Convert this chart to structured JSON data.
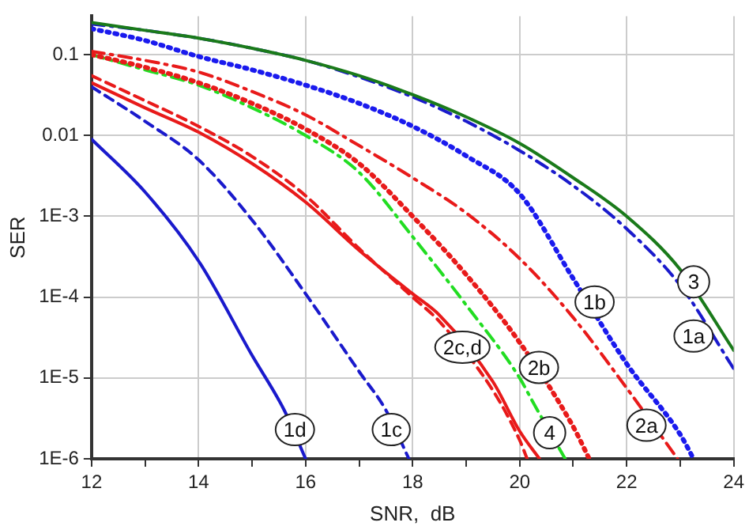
{
  "chart_data": {
    "type": "line",
    "xlabel": "SNR,  dB",
    "ylabel": "SER",
    "log": "y",
    "grid": true,
    "legend": false,
    "marker": "none",
    "xlim": [
      12,
      24
    ],
    "xticks": [
      12,
      {
        "value": 13,
        "label": null
      },
      14,
      {
        "value": 15,
        "label": null
      },
      16,
      {
        "value": 17,
        "label": null
      },
      18,
      {
        "value": 19,
        "label": null
      },
      20,
      {
        "value": 21,
        "label": null
      },
      22,
      {
        "value": 23,
        "label": null
      },
      24
    ],
    "ylim": [
      1e-06,
      0.3
    ],
    "yticks": [
      {
        "value": 1e-06,
        "label": "1E-6"
      },
      {
        "value": 1e-05,
        "label": "1E-5"
      },
      {
        "value": 0.0001,
        "label": "1E-4"
      },
      {
        "value": 0.001,
        "label": "1E-3"
      },
      0.01,
      0.1
    ],
    "series": [
      {
        "color": "#1a7a1a",
        "line_style": "solid",
        "x": [
          12,
          13,
          14,
          15,
          16,
          17,
          18,
          19,
          20,
          21,
          22,
          23,
          24
        ],
        "values": [
          0.25,
          0.2,
          0.16,
          0.12,
          0.085,
          0.055,
          0.032,
          0.017,
          0.008,
          0.003,
          0.001,
          0.00022,
          2.2e-05
        ]
      },
      {
        "color": "#1a1acc",
        "line_style": "dashdot",
        "x": [
          12,
          13,
          14,
          15,
          16,
          17,
          18,
          19,
          20,
          21,
          22,
          23,
          24
        ],
        "values": [
          0.24,
          0.2,
          0.16,
          0.12,
          0.085,
          0.053,
          0.03,
          0.015,
          0.0065,
          0.0024,
          0.0007,
          0.00014,
          1.3e-05
        ]
      },
      {
        "color": "#1a1aee",
        "line_style": "dotted",
        "x": [
          12,
          13,
          14,
          15,
          16,
          17,
          18,
          19,
          20,
          21,
          22,
          23,
          23.25
        ],
        "values": [
          0.21,
          0.15,
          0.095,
          0.065,
          0.042,
          0.025,
          0.013,
          0.0056,
          0.0019,
          0.00017,
          1.5e-05,
          2e-06,
          1e-06
        ]
      },
      {
        "color": "#e81a1a",
        "line_style": "dashdot",
        "x": [
          12,
          13,
          14,
          15,
          16,
          17,
          18,
          19,
          20,
          21,
          22,
          22.95
        ],
        "values": [
          0.11,
          0.085,
          0.061,
          0.035,
          0.018,
          0.0075,
          0.003,
          0.0011,
          0.0003,
          5.6e-05,
          7.5e-06,
          1e-06
        ]
      },
      {
        "color": "#e81a1a",
        "line_style": "dotted",
        "x": [
          12,
          13,
          14,
          15,
          16,
          17,
          18,
          19,
          20,
          21,
          21.3
        ],
        "values": [
          0.1,
          0.07,
          0.045,
          0.025,
          0.012,
          0.0045,
          0.001,
          0.00019,
          2.75e-05,
          2.5e-06,
          1e-06
        ]
      },
      {
        "color": "#22dd22",
        "line_style": "dashdot",
        "x": [
          12,
          13,
          14,
          15,
          16,
          17,
          18,
          19,
          20,
          20.25,
          20.85
        ],
        "values": [
          0.1,
          0.065,
          0.042,
          0.022,
          0.01,
          0.0035,
          0.00056,
          8e-05,
          1e-05,
          5e-06,
          1e-06
        ]
      },
      {
        "color": "#e81a1a",
        "line_style": "solid",
        "x": [
          12,
          13,
          14,
          15,
          16,
          17,
          18,
          18.5,
          19.5,
          20,
          20.37
        ],
        "values": [
          0.045,
          0.022,
          0.011,
          0.0045,
          0.0015,
          0.00038,
          0.00011,
          6e-05,
          9e-06,
          2.2e-06,
          1e-06
        ]
      },
      {
        "color": "#e81a1a",
        "line_style": "dashed",
        "x": [
          12,
          13,
          14,
          15,
          16,
          17,
          18,
          18.5,
          19.5,
          20,
          20.14
        ],
        "values": [
          0.055,
          0.027,
          0.013,
          0.0055,
          0.0018,
          0.0004,
          0.0001,
          5e-05,
          7e-06,
          1.7e-06,
          1e-06
        ]
      },
      {
        "color": "#1a1acc",
        "line_style": "dashed",
        "x": [
          12,
          13,
          14,
          15,
          16,
          17,
          17.5,
          17.93
        ],
        "values": [
          0.04,
          0.015,
          0.005,
          0.0009,
          0.00011,
          1.2e-05,
          4e-06,
          1e-06
        ]
      },
      {
        "color": "#1a1acc",
        "line_style": "solid",
        "x": [
          12,
          13,
          14,
          15,
          15.6,
          16
        ],
        "values": [
          0.009,
          0.002,
          0.00028,
          1.9e-05,
          4e-06,
          1e-06
        ]
      }
    ],
    "annotations": [
      {
        "text": "3",
        "x": 23.25,
        "y": 0.000155
      },
      {
        "text": "1a",
        "x": 23.25,
        "y": 3.3e-05
      },
      {
        "text": "1b",
        "x": 21.4,
        "y": 8.7e-05
      },
      {
        "text": "2c,d",
        "x": 18.93,
        "y": 2.4e-05
      },
      {
        "text": "2b",
        "x": 20.36,
        "y": 1.35e-05
      },
      {
        "text": "4",
        "x": 20.56,
        "y": 2.1e-06
      },
      {
        "text": "2a",
        "x": 22.37,
        "y": 2.6e-06
      },
      {
        "text": "1c",
        "x": 17.6,
        "y": 2.3e-06
      },
      {
        "text": "1d",
        "x": 15.8,
        "y": 2.3e-06
      }
    ]
  }
}
